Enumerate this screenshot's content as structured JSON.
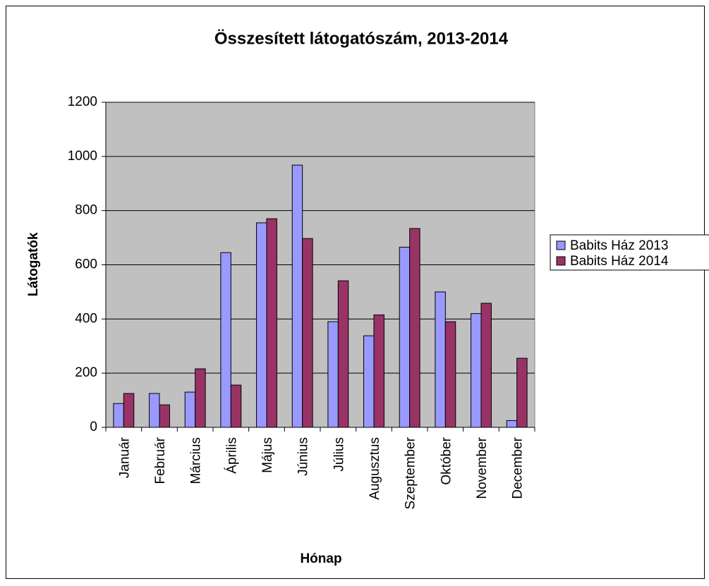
{
  "chart_data": {
    "type": "bar",
    "title": "Összesített látogatószám, 2013-2014",
    "x_label": "Hónap",
    "y_label": "Látogatók",
    "categories": [
      "Január",
      "Február",
      "Március",
      "Április",
      "Május",
      "Június",
      "Július",
      "Augusztus",
      "Szeptember",
      "Október",
      "November",
      "December"
    ],
    "series": [
      {
        "name": "Babits Ház 2013",
        "color": "#9999ff",
        "values": [
          88,
          125,
          130,
          645,
          755,
          968,
          390,
          338,
          665,
          500,
          420,
          25
        ]
      },
      {
        "name": "Babits Ház 2014",
        "color": "#993366",
        "values": [
          125,
          83,
          216,
          156,
          770,
          697,
          541,
          415,
          734,
          390,
          458,
          255
        ]
      }
    ],
    "ylim": [
      0,
      1200
    ],
    "yticks": [
      0,
      200,
      400,
      600,
      800,
      1000,
      1200
    ],
    "grid": true,
    "legend": "right",
    "plot_background": "#c0c0c0"
  }
}
